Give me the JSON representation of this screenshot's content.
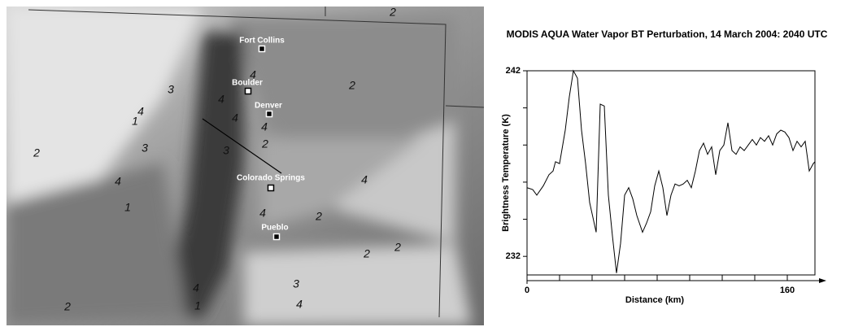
{
  "image": {
    "cities": [
      "Fort Collins",
      "Boulder",
      "Denver",
      "Colorado Springs",
      "Pueblo"
    ],
    "contour_labels": [
      "2",
      "4",
      "2",
      "3",
      "4",
      "4",
      "1",
      "4",
      "4",
      "2",
      "2",
      "3",
      "3",
      "4",
      "4",
      "1",
      "4",
      "2",
      "2",
      "2",
      "3",
      "4",
      "4",
      "1",
      "2"
    ]
  },
  "chart_data": {
    "type": "line",
    "title": "MODIS AQUA Water Vapor BT Perturbation, 14 March 2004: 2040 UTC",
    "x_label": "Distance (km)",
    "y_label": "Brightness Temperature (K)",
    "xlim": [
      0,
      177
    ],
    "ylim": [
      231,
      242
    ],
    "xticks": [
      0,
      160
    ],
    "xminor": [
      20,
      40,
      60,
      80,
      100,
      120,
      140
    ],
    "yticks": [
      232,
      242
    ],
    "yminor": [
      234,
      236,
      238,
      240
    ],
    "color": "#000000",
    "x": [
      0,
      3.5,
      6,
      10,
      13.5,
      16,
      17.5,
      20,
      23.5,
      26,
      28.5,
      31,
      33.5,
      36,
      38.5,
      41,
      42.5,
      45,
      47.5,
      50,
      52.5,
      55,
      57.5,
      60,
      62.5,
      65,
      67.5,
      71,
      73.5,
      76,
      78.5,
      81,
      83.5,
      86,
      88.5,
      91,
      93.5,
      96,
      98.5,
      101,
      103.5,
      106,
      108.5,
      111,
      113.5,
      116,
      118.5,
      121,
      123.5,
      126,
      128.5,
      131,
      133.5,
      136,
      138.5,
      141,
      143.5,
      146,
      148.5,
      151,
      153.5,
      156,
      158.5,
      161,
      163.5,
      166,
      168.5,
      171,
      173.5,
      176,
      177
    ],
    "values": [
      235.7,
      235.6,
      235.3,
      235.8,
      236.4,
      236.6,
      237.1,
      237.0,
      238.8,
      240.6,
      242.0,
      241.6,
      238.8,
      237.0,
      234.9,
      233.9,
      233.3,
      240.2,
      240.1,
      235.3,
      233.1,
      231.1,
      232.7,
      235.3,
      235.7,
      235.1,
      234.2,
      233.3,
      233.8,
      234.4,
      235.8,
      236.6,
      235.7,
      234.2,
      235.3,
      235.9,
      235.8,
      235.9,
      236.1,
      235.7,
      236.6,
      237.7,
      238.1,
      237.5,
      237.9,
      236.4,
      237.7,
      238.0,
      239.2,
      237.7,
      237.5,
      237.9,
      237.7,
      238.0,
      238.3,
      238.0,
      238.4,
      238.2,
      238.5,
      238.0,
      238.6,
      238.8,
      238.7,
      238.4,
      237.7,
      238.2,
      237.9,
      238.2,
      236.6,
      237.0,
      237.1
    ]
  }
}
